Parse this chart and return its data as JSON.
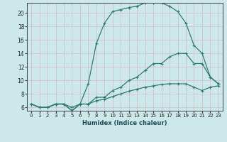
{
  "bg_color": "#cce8ea",
  "line_color": "#2e7b6e",
  "grid_color": "#b0d5d8",
  "xlabel": "Humidex (Indice chaleur)",
  "xlim": [
    -0.5,
    23.5
  ],
  "ylim": [
    5.5,
    21.5
  ],
  "xticks": [
    0,
    1,
    2,
    3,
    4,
    5,
    6,
    7,
    8,
    9,
    10,
    11,
    12,
    13,
    14,
    15,
    16,
    17,
    18,
    19,
    20,
    21,
    22,
    23
  ],
  "yticks": [
    6,
    8,
    10,
    12,
    14,
    16,
    18,
    20
  ],
  "line1_x": [
    0,
    1,
    2,
    3,
    4,
    5,
    6,
    7,
    8,
    9,
    10,
    11,
    12,
    13,
    14,
    15,
    16,
    17,
    18,
    19,
    20,
    21,
    22,
    23
  ],
  "line1_y": [
    6.5,
    6.0,
    6.0,
    6.5,
    6.5,
    6.0,
    6.5,
    9.5,
    15.5,
    18.5,
    20.2,
    20.5,
    20.8,
    21.0,
    21.5,
    21.5,
    21.5,
    21.0,
    20.2,
    18.5,
    15.2,
    14.0,
    10.5,
    9.5
  ],
  "line2_x": [
    0,
    1,
    2,
    3,
    4,
    5,
    6,
    7,
    8,
    9,
    10,
    11,
    12,
    13,
    14,
    15,
    16,
    17,
    18,
    19,
    20,
    21,
    22,
    23
  ],
  "line2_y": [
    6.5,
    6.0,
    6.0,
    6.5,
    6.5,
    5.5,
    6.5,
    6.5,
    7.5,
    7.5,
    8.5,
    9.0,
    10.0,
    10.5,
    11.5,
    12.5,
    12.5,
    13.5,
    14.0,
    14.0,
    12.5,
    12.5,
    10.5,
    9.5
  ],
  "line3_x": [
    0,
    1,
    2,
    3,
    4,
    5,
    6,
    7,
    8,
    9,
    10,
    11,
    12,
    13,
    14,
    15,
    16,
    17,
    18,
    19,
    20,
    21,
    22,
    23
  ],
  "line3_y": [
    6.5,
    6.0,
    6.0,
    6.5,
    6.5,
    5.5,
    6.5,
    6.5,
    7.0,
    7.2,
    7.6,
    8.0,
    8.4,
    8.7,
    9.0,
    9.2,
    9.4,
    9.5,
    9.5,
    9.5,
    9.0,
    8.5,
    9.0,
    9.2
  ]
}
